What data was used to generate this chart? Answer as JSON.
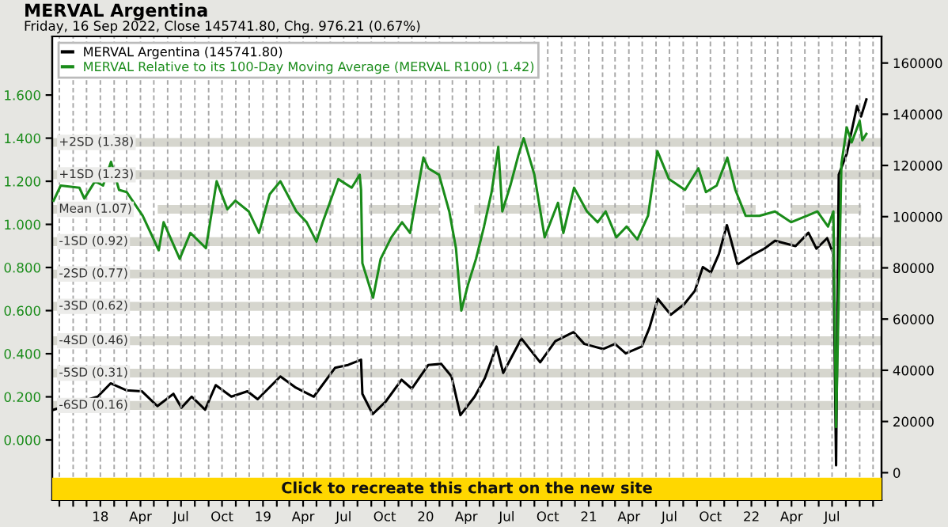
{
  "chart_data": {
    "type": "line",
    "title": "MERVAL Argentina",
    "subtitle": "Friday, 16 Sep 2022, Close 145741.80, Chg. 976.21 (0.67%)",
    "annotations": [
      "Click to recreate this chart on the new site"
    ],
    "series": [
      {
        "name": "MERVAL Argentina (145741.80)",
        "color": "#000000",
        "axis": "y2",
        "x": [
          "2017-09-18",
          "2017-12-26",
          "2018-01-24",
          "2018-02-28",
          "2018-04-04",
          "2018-05-09",
          "2018-06-14",
          "2018-07-02",
          "2018-07-25",
          "2018-08-24",
          "2018-09-17",
          "2018-10-22",
          "2018-11-27",
          "2018-12-20",
          "2019-02-09",
          "2019-03-14",
          "2019-04-25",
          "2019-06-12",
          "2019-07-11",
          "2019-08-09",
          "2019-08-12",
          "2019-09-04",
          "2019-10-03",
          "2019-11-08",
          "2019-12-01",
          "2020-01-07",
          "2020-02-05",
          "2020-02-28",
          "2020-03-19",
          "2020-04-20",
          "2020-05-13",
          "2020-06-08",
          "2020-06-23",
          "2020-08-03",
          "2020-09-14",
          "2020-10-18",
          "2020-11-28",
          "2020-12-22",
          "2021-02-02",
          "2021-03-01",
          "2021-03-25",
          "2021-04-30",
          "2021-05-17",
          "2021-06-05",
          "2021-07-04",
          "2021-08-03",
          "2021-08-27",
          "2021-09-14",
          "2021-10-02",
          "2021-10-20",
          "2021-11-07",
          "2021-12-01",
          "2022-01-07",
          "2022-01-30",
          "2022-02-23",
          "2022-04-10",
          "2022-05-09",
          "2022-05-27",
          "2022-06-20",
          "2022-07-04",
          "2022-07-10",
          "2022-07-16",
          "2022-08-03",
          "2022-08-26",
          "2022-09-04",
          "2022-09-16"
        ],
        "values": [
          24600,
          29700,
          34900,
          32200,
          31800,
          26000,
          30800,
          25400,
          29700,
          24600,
          34200,
          29700,
          31800,
          28700,
          37600,
          33400,
          29700,
          41000,
          42100,
          44100,
          30800,
          22900,
          27700,
          36300,
          32800,
          42100,
          42500,
          37600,
          22500,
          29700,
          37000,
          49300,
          39000,
          52400,
          43100,
          51400,
          54900,
          50300,
          48300,
          50300,
          46600,
          49300,
          56500,
          67900,
          61700,
          65800,
          71000,
          80300,
          78200,
          85400,
          96700,
          81300,
          85400,
          87500,
          90600,
          88500,
          93700,
          87500,
          91600,
          85400,
          2900,
          116400,
          124600,
          143200,
          139100,
          145741.8
        ]
      },
      {
        "name": "MERVAL Relative to its 100-Day Moving Average (MERVAL R100) (1.42)",
        "color": "#1a8c1a",
        "axis": "y",
        "x": [
          "2017-09-18",
          "2017-10-04",
          "2017-11-15",
          "2017-11-26",
          "2017-12-20",
          "2018-01-07",
          "2018-01-25",
          "2018-02-12",
          "2018-03-01",
          "2018-04-06",
          "2018-05-12",
          "2018-05-23",
          "2018-06-28",
          "2018-07-22",
          "2018-08-26",
          "2018-09-19",
          "2018-10-13",
          "2018-10-31",
          "2018-11-30",
          "2018-12-23",
          "2019-01-16",
          "2019-02-09",
          "2019-03-17",
          "2019-04-09",
          "2019-05-01",
          "2019-05-15",
          "2019-06-19",
          "2019-07-19",
          "2019-08-06",
          "2019-08-09",
          "2019-08-12",
          "2019-09-05",
          "2019-09-22",
          "2019-10-16",
          "2019-11-09",
          "2019-11-27",
          "2019-12-27",
          "2020-01-07",
          "2020-01-31",
          "2020-02-23",
          "2020-03-09",
          "2020-03-21",
          "2020-04-05",
          "2020-04-23",
          "2020-05-11",
          "2020-05-28",
          "2020-06-12",
          "2020-06-21",
          "2020-07-09",
          "2020-07-27",
          "2020-08-08",
          "2020-09-01",
          "2020-09-24",
          "2020-10-24",
          "2020-11-05",
          "2020-11-29",
          "2020-12-28",
          "2021-01-21",
          "2021-02-08",
          "2021-03-04",
          "2021-03-27",
          "2021-04-20",
          "2021-05-14",
          "2021-06-04",
          "2021-06-30",
          "2021-08-05",
          "2021-09-04",
          "2021-09-21",
          "2021-10-15",
          "2021-11-08",
          "2021-11-26",
          "2021-12-19",
          "2022-01-19",
          "2022-02-23",
          "2022-03-31",
          "2022-05-06",
          "2022-05-29",
          "2022-06-22",
          "2022-07-04",
          "2022-07-10",
          "2022-07-22",
          "2022-08-03",
          "2022-08-14",
          "2022-09-01",
          "2022-09-07",
          "2022-09-16"
        ],
        "values": [
          1.11,
          1.18,
          1.17,
          1.12,
          1.2,
          1.18,
          1.29,
          1.16,
          1.15,
          1.04,
          0.88,
          1.01,
          0.84,
          0.96,
          0.89,
          1.2,
          1.07,
          1.11,
          1.06,
          0.96,
          1.14,
          1.2,
          1.06,
          1.01,
          0.92,
          1.01,
          1.21,
          1.17,
          1.23,
          1.16,
          0.82,
          0.66,
          0.84,
          0.94,
          1.01,
          0.96,
          1.31,
          1.26,
          1.23,
          1.06,
          0.89,
          0.6,
          0.72,
          0.84,
          0.99,
          1.15,
          1.36,
          1.06,
          1.18,
          1.32,
          1.4,
          1.23,
          0.94,
          1.1,
          0.96,
          1.17,
          1.06,
          1.01,
          1.06,
          0.94,
          0.99,
          0.93,
          1.04,
          1.34,
          1.21,
          1.16,
          1.26,
          1.15,
          1.18,
          1.31,
          1.16,
          1.04,
          1.04,
          1.06,
          1.01,
          1.04,
          1.06,
          0.99,
          1.06,
          0.06,
          1.28,
          1.45,
          1.38,
          1.48,
          1.39,
          1.42
        ]
      }
    ],
    "xlim": [
      "2017-09-15",
      "2022-10-20"
    ],
    "xticks": [
      {
        "value": "2017-10-01",
        "label": null
      },
      {
        "value": "2017-11-01",
        "label": null
      },
      {
        "value": "2017-12-01",
        "label": null
      },
      {
        "value": "2018-01-01",
        "label": "18"
      },
      {
        "value": "2018-02-01",
        "label": null
      },
      {
        "value": "2018-03-01",
        "label": null
      },
      {
        "value": "2018-04-01",
        "label": "Apr"
      },
      {
        "value": "2018-05-01",
        "label": null
      },
      {
        "value": "2018-06-01",
        "label": null
      },
      {
        "value": "2018-07-01",
        "label": "Jul"
      },
      {
        "value": "2018-08-01",
        "label": null
      },
      {
        "value": "2018-09-01",
        "label": null
      },
      {
        "value": "2018-10-01",
        "label": "Oct"
      },
      {
        "value": "2018-11-01",
        "label": null
      },
      {
        "value": "2018-12-01",
        "label": null
      },
      {
        "value": "2019-01-01",
        "label": "19"
      },
      {
        "value": "2019-02-01",
        "label": null
      },
      {
        "value": "2019-03-01",
        "label": null
      },
      {
        "value": "2019-04-01",
        "label": "Apr"
      },
      {
        "value": "2019-05-01",
        "label": null
      },
      {
        "value": "2019-06-01",
        "label": null
      },
      {
        "value": "2019-07-01",
        "label": "Jul"
      },
      {
        "value": "2019-08-01",
        "label": null
      },
      {
        "value": "2019-09-01",
        "label": null
      },
      {
        "value": "2019-10-01",
        "label": "Oct"
      },
      {
        "value": "2019-11-01",
        "label": null
      },
      {
        "value": "2019-12-01",
        "label": null
      },
      {
        "value": "2020-01-01",
        "label": "20"
      },
      {
        "value": "2020-02-01",
        "label": null
      },
      {
        "value": "2020-03-01",
        "label": null
      },
      {
        "value": "2020-04-01",
        "label": "Apr"
      },
      {
        "value": "2020-05-01",
        "label": null
      },
      {
        "value": "2020-06-01",
        "label": null
      },
      {
        "value": "2020-07-01",
        "label": "Jul"
      },
      {
        "value": "2020-08-01",
        "label": null
      },
      {
        "value": "2020-09-01",
        "label": null
      },
      {
        "value": "2020-10-01",
        "label": "Oct"
      },
      {
        "value": "2020-11-01",
        "label": null
      },
      {
        "value": "2020-12-01",
        "label": null
      },
      {
        "value": "2021-01-01",
        "label": "21"
      },
      {
        "value": "2021-02-01",
        "label": null
      },
      {
        "value": "2021-03-01",
        "label": null
      },
      {
        "value": "2021-04-01",
        "label": "Apr"
      },
      {
        "value": "2021-05-01",
        "label": null
      },
      {
        "value": "2021-06-01",
        "label": null
      },
      {
        "value": "2021-07-01",
        "label": "Jul"
      },
      {
        "value": "2021-08-01",
        "label": null
      },
      {
        "value": "2021-09-01",
        "label": null
      },
      {
        "value": "2021-10-01",
        "label": "Oct"
      },
      {
        "value": "2021-11-01",
        "label": null
      },
      {
        "value": "2021-12-01",
        "label": null
      },
      {
        "value": "2022-01-01",
        "label": "22"
      },
      {
        "value": "2022-02-01",
        "label": null
      },
      {
        "value": "2022-03-01",
        "label": null
      },
      {
        "value": "2022-04-01",
        "label": "Apr"
      },
      {
        "value": "2022-05-01",
        "label": null
      },
      {
        "value": "2022-06-01",
        "label": null
      },
      {
        "value": "2022-07-01",
        "label": "Jul"
      },
      {
        "value": "2022-08-01",
        "label": null
      },
      {
        "value": "2022-09-01",
        "label": null
      },
      {
        "value": "2022-10-01",
        "label": null
      }
    ],
    "ylim": [
      -0.279,
      1.872
    ],
    "yticks": [
      {
        "value": 0,
        "label": "0.000"
      },
      {
        "value": 0.2,
        "label": "0.200"
      },
      {
        "value": 0.4,
        "label": "0.400"
      },
      {
        "value": 0.6,
        "label": "0.600"
      },
      {
        "value": 0.8,
        "label": "0.800"
      },
      {
        "value": 1.0,
        "label": "1.000"
      },
      {
        "value": 1.2,
        "label": "1.200"
      },
      {
        "value": 1.4,
        "label": "1.400"
      },
      {
        "value": 1.6,
        "label": "1.600"
      }
    ],
    "y2lim": [
      -10700,
      170400
    ],
    "y2ticks": [
      0,
      20000,
      40000,
      60000,
      80000,
      100000,
      120000,
      140000,
      160000
    ],
    "ref_lines": [
      {
        "axis": "y",
        "value": 1.38,
        "label": "+2SD (1.38)",
        "color": "#d6d6ce",
        "line_style": "solid"
      },
      {
        "axis": "y",
        "value": 1.23,
        "label": "+1SD (1.23)",
        "color": "#d6d6ce",
        "line_style": "solid"
      },
      {
        "axis": "y",
        "value": 1.07,
        "label": "Mean (1.07)",
        "color": "#d6d6ce",
        "line_style": "dashed"
      },
      {
        "axis": "y",
        "value": 0.92,
        "label": "-1SD (0.92)",
        "color": "#d6d6ce",
        "line_style": "solid"
      },
      {
        "axis": "y",
        "value": 0.77,
        "label": "-2SD (0.77)",
        "color": "#d6d6ce",
        "line_style": "solid"
      },
      {
        "axis": "y",
        "value": 0.62,
        "label": "-3SD (0.62)",
        "color": "#d6d6ce",
        "line_style": "solid"
      },
      {
        "axis": "y",
        "value": 0.46,
        "label": "-4SD (0.46)",
        "color": "#d6d6ce",
        "line_style": "solid"
      },
      {
        "axis": "y",
        "value": 0.31,
        "label": "-5SD (0.31)",
        "color": "#d6d6ce",
        "line_style": "solid"
      },
      {
        "axis": "y",
        "value": 0.16,
        "label": "-6SD (0.16)",
        "color": "#d6d6ce",
        "line_style": "solid"
      }
    ],
    "grid": "x",
    "legend": "top left"
  }
}
